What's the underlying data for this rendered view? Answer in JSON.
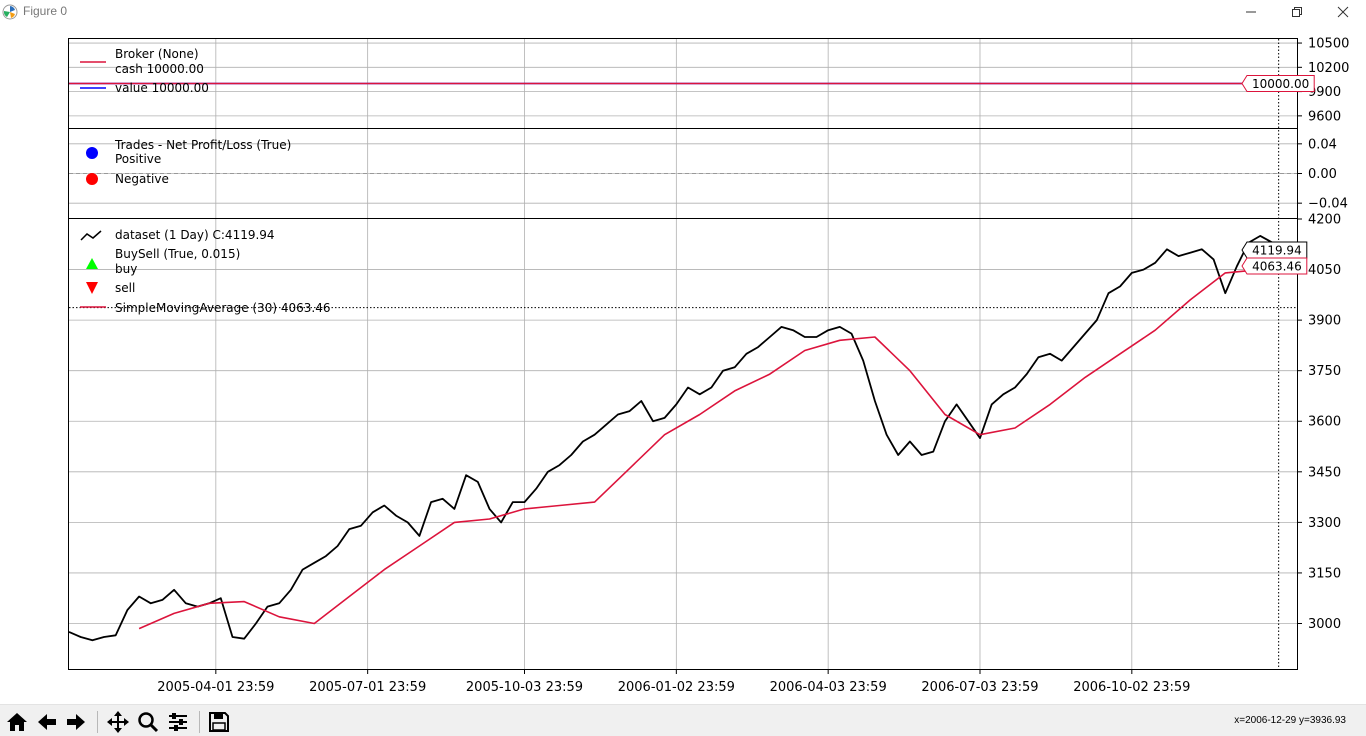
{
  "window": {
    "title": "Figure 0",
    "icons": [
      "matplotlib-logo-icon",
      "minimize-icon",
      "restore-icon",
      "close-icon"
    ]
  },
  "toolbar": {
    "icons": [
      "home-icon",
      "back-arrow-icon",
      "forward-arrow-icon",
      "pan-icon",
      "zoom-icon",
      "configure-subplots-icon",
      "save-icon"
    ],
    "coords": "x=2006-12-29 y=3936.93"
  },
  "chart_data": [
    {
      "type": "line",
      "panel": "broker",
      "legend": {
        "title": "Broker (None)",
        "entries": [
          "cash 10000.00",
          "value 10000.00"
        ]
      },
      "series": [
        {
          "name": "cash",
          "color": "#0000ff",
          "constant": 10000.0
        },
        {
          "name": "value",
          "color": "#dc143c",
          "constant": 10000.0
        }
      ],
      "ylim": [
        9450,
        10550
      ],
      "yticks": [
        9600,
        9900,
        10200,
        10500
      ],
      "ytick_labels": [
        "9600",
        "9900",
        "10200",
        "10500"
      ],
      "last_value_label": "10000.00",
      "grid": true
    },
    {
      "type": "scatter",
      "panel": "trades",
      "legend": {
        "title": "Trades - Net Profit/Loss (True)",
        "entries": [
          "Positive",
          "Negative"
        ]
      },
      "colors": {
        "positive": "#0000ff",
        "negative": "#ff0000"
      },
      "ylim": [
        -0.06,
        0.06
      ],
      "yticks": [
        -0.04,
        0.0,
        0.04
      ],
      "ytick_labels": [
        "−0.04",
        "0.00",
        "0.04"
      ],
      "zero_line": true,
      "grid": true
    },
    {
      "type": "line",
      "panel": "price",
      "legend": {
        "data_label": "dataset (1 Day) C:4119.94",
        "buysell_label": "BuySell (True, 0.015)",
        "buy_label": "buy",
        "sell_label": "sell",
        "sma_label": "SimpleMovingAverage (30) 4063.46"
      },
      "xlim": [
        "2005-01-03",
        "2007-01-09"
      ],
      "xticks": [
        "2005-04-01",
        "2005-07-01",
        "2005-10-03",
        "2006-01-02",
        "2006-04-03",
        "2006-07-03",
        "2006-10-02"
      ],
      "xtick_labels": [
        "2005-04-01 23:59",
        "2005-07-01 23:59",
        "2005-10-03 23:59",
        "2006-01-02 23:59",
        "2006-04-03 23:59",
        "2006-07-03 23:59",
        "2006-10-02 23:59"
      ],
      "ylim": [
        2865,
        4200
      ],
      "yticks": [
        3000,
        3150,
        3300,
        3450,
        3600,
        3750,
        3900,
        4050,
        4200
      ],
      "ytick_labels": [
        "3000",
        "3150",
        "3300",
        "3450",
        "3600",
        "3750",
        "3900",
        "4050",
        "4200"
      ],
      "crosshair": {
        "x": "2006-12-29",
        "y": 3936.93
      },
      "grid": true,
      "series": [
        {
          "name": "dataset close",
          "color": "#000000",
          "x": [
            "2005-01-03",
            "2005-01-10",
            "2005-01-17",
            "2005-01-24",
            "2005-01-31",
            "2005-02-07",
            "2005-02-14",
            "2005-02-21",
            "2005-02-28",
            "2005-03-07",
            "2005-03-14",
            "2005-03-21",
            "2005-03-28",
            "2005-04-04",
            "2005-04-11",
            "2005-04-18",
            "2005-04-25",
            "2005-05-02",
            "2005-05-09",
            "2005-05-16",
            "2005-05-23",
            "2005-05-30",
            "2005-06-06",
            "2005-06-13",
            "2005-06-20",
            "2005-06-27",
            "2005-07-04",
            "2005-07-11",
            "2005-07-18",
            "2005-07-25",
            "2005-08-01",
            "2005-08-08",
            "2005-08-15",
            "2005-08-22",
            "2005-08-29",
            "2005-09-05",
            "2005-09-12",
            "2005-09-19",
            "2005-09-26",
            "2005-10-03",
            "2005-10-10",
            "2005-10-17",
            "2005-10-24",
            "2005-10-31",
            "2005-11-07",
            "2005-11-14",
            "2005-11-21",
            "2005-11-28",
            "2005-12-05",
            "2005-12-12",
            "2005-12-19",
            "2005-12-26",
            "2006-01-02",
            "2006-01-09",
            "2006-01-16",
            "2006-01-23",
            "2006-01-30",
            "2006-02-06",
            "2006-02-13",
            "2006-02-20",
            "2006-02-27",
            "2006-03-06",
            "2006-03-13",
            "2006-03-20",
            "2006-03-27",
            "2006-04-03",
            "2006-04-10",
            "2006-04-17",
            "2006-04-24",
            "2006-05-01",
            "2006-05-08",
            "2006-05-15",
            "2006-05-22",
            "2006-05-29",
            "2006-06-05",
            "2006-06-12",
            "2006-06-19",
            "2006-06-26",
            "2006-07-03",
            "2006-07-10",
            "2006-07-17",
            "2006-07-24",
            "2006-07-31",
            "2006-08-07",
            "2006-08-14",
            "2006-08-21",
            "2006-08-28",
            "2006-09-04",
            "2006-09-11",
            "2006-09-18",
            "2006-09-25",
            "2006-10-02",
            "2006-10-09",
            "2006-10-16",
            "2006-10-23",
            "2006-10-30",
            "2006-11-06",
            "2006-11-13",
            "2006-11-20",
            "2006-11-27",
            "2006-12-04",
            "2006-12-11",
            "2006-12-18",
            "2006-12-29"
          ],
          "values": [
            2975,
            2960,
            2950,
            2960,
            2965,
            3040,
            3080,
            3060,
            3070,
            3100,
            3060,
            3050,
            3060,
            3075,
            2960,
            2955,
            3000,
            3050,
            3060,
            3100,
            3160,
            3180,
            3200,
            3230,
            3280,
            3290,
            3330,
            3350,
            3320,
            3300,
            3260,
            3360,
            3370,
            3340,
            3440,
            3420,
            3340,
            3300,
            3360,
            3360,
            3400,
            3450,
            3470,
            3500,
            3540,
            3560,
            3590,
            3620,
            3630,
            3660,
            3600,
            3610,
            3650,
            3700,
            3680,
            3700,
            3750,
            3760,
            3800,
            3820,
            3850,
            3880,
            3870,
            3850,
            3850,
            3870,
            3880,
            3860,
            3780,
            3660,
            3560,
            3500,
            3540,
            3500,
            3510,
            3600,
            3650,
            3600,
            3550,
            3650,
            3680,
            3700,
            3740,
            3790,
            3800,
            3780,
            3820,
            3860,
            3900,
            3980,
            4000,
            4040,
            4050,
            4070,
            4110,
            4090,
            4100,
            4110,
            4080,
            3980,
            4060,
            4130,
            4150,
            4119.94
          ]
        },
        {
          "name": "SimpleMovingAverage (30)",
          "color": "#dc143c",
          "x": [
            "2005-02-14",
            "2005-03-07",
            "2005-03-28",
            "2005-04-18",
            "2005-05-09",
            "2005-05-30",
            "2005-06-20",
            "2005-07-11",
            "2005-08-01",
            "2005-08-22",
            "2005-09-12",
            "2005-10-03",
            "2005-10-24",
            "2005-11-14",
            "2005-12-05",
            "2005-12-26",
            "2006-01-16",
            "2006-02-06",
            "2006-02-27",
            "2006-03-20",
            "2006-04-10",
            "2006-05-01",
            "2006-05-22",
            "2006-06-12",
            "2006-07-03",
            "2006-07-24",
            "2006-08-14",
            "2006-09-04",
            "2006-09-25",
            "2006-10-16",
            "2006-11-06",
            "2006-11-27",
            "2006-12-18",
            "2006-12-29"
          ],
          "values": [
            2985,
            3030,
            3060,
            3065,
            3020,
            3000,
            3080,
            3160,
            3230,
            3300,
            3310,
            3340,
            3350,
            3360,
            3460,
            3560,
            3620,
            3690,
            3740,
            3810,
            3840,
            3850,
            3750,
            3620,
            3560,
            3580,
            3650,
            3730,
            3800,
            3870,
            3960,
            4040,
            4050,
            4063.46
          ]
        }
      ],
      "last_value_labels": [
        "4119.94",
        "4063.46"
      ]
    }
  ]
}
